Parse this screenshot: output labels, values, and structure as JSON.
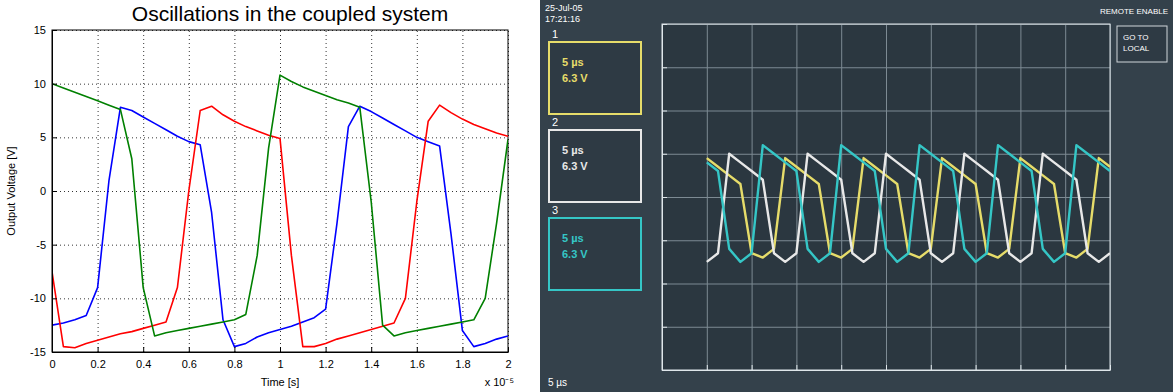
{
  "chart_data": [
    {
      "type": "line",
      "title": "Oscillations in the coupled system",
      "x_label": "Time [s]",
      "y_label": "Output Voltage [V]",
      "x_multiplier": "x 10⁻⁵",
      "x": [
        0,
        0.05,
        0.1,
        0.15,
        0.2,
        0.25,
        0.3,
        0.35,
        0.4,
        0.45,
        0.5,
        0.55,
        0.6,
        0.65,
        0.7,
        0.75,
        0.8,
        0.85,
        0.9,
        0.95,
        1,
        1.05,
        1.1,
        1.15,
        1.2,
        1.25,
        1.3,
        1.35,
        1.4,
        1.45,
        1.5,
        1.55,
        1.6,
        1.65,
        1.7,
        1.75,
        1.8,
        1.85,
        1.9,
        1.95,
        2
      ],
      "series": [
        {
          "color": "#0000ff",
          "values": [
            -12.5,
            -12.3,
            -12.0,
            -11.6,
            -9,
            1,
            7.8,
            7.5,
            6.9,
            6.3,
            5.7,
            5.1,
            4.6,
            4.3,
            -2,
            -12,
            -14.5,
            -14.2,
            -13.6,
            -13.2,
            -12.9,
            -12.6,
            -12.2,
            -11.8,
            -11,
            -3,
            6,
            7.9,
            7.4,
            6.8,
            6.2,
            5.6,
            5.0,
            4.6,
            4.2,
            -4,
            -13,
            -14.5,
            -14.2,
            -13.8,
            -13.5
          ]
        },
        {
          "color": "#ff0000",
          "values": [
            -7.5,
            -14.5,
            -14.6,
            -14.2,
            -13.9,
            -13.6,
            -13.3,
            -13.1,
            -12.8,
            -12.5,
            -12.2,
            -9,
            0,
            7.5,
            7.9,
            7.1,
            6.5,
            6.0,
            5.6,
            5.2,
            4.9,
            -6,
            -14.5,
            -14.5,
            -14.2,
            -13.8,
            -13.5,
            -13.2,
            -12.9,
            -12.6,
            -12.3,
            -10,
            -1,
            6.5,
            8.0,
            7.3,
            6.7,
            6.2,
            5.8,
            5.4,
            5.1
          ]
        },
        {
          "color": "#008000",
          "values": [
            10,
            9.6,
            9.2,
            8.8,
            8.4,
            8.0,
            7.6,
            3,
            -9,
            -13.5,
            -13.2,
            -13.0,
            -12.8,
            -12.6,
            -12.4,
            -12.2,
            -12.0,
            -11.5,
            -6,
            4,
            10.8,
            10.2,
            9.7,
            9.3,
            8.9,
            8.5,
            8.2,
            7.8,
            -1,
            -12.5,
            -13.5,
            -13.2,
            -13.0,
            -12.8,
            -12.6,
            -12.4,
            -12.2,
            -12.0,
            -10,
            -3,
            4.8
          ]
        }
      ],
      "xlim": [
        0,
        2
      ],
      "ylim": [
        -15,
        15
      ],
      "xticks": [
        0,
        0.2,
        0.4,
        0.6,
        0.8,
        1,
        1.2,
        1.4,
        1.6,
        1.8,
        2
      ],
      "yticks": [
        -15,
        -10,
        -5,
        0,
        5,
        10,
        15
      ],
      "grid": true
    },
    {
      "type": "line",
      "x": [
        1,
        1.25,
        1.5,
        1.75,
        2,
        2.25,
        2.5,
        2.75,
        3,
        3.25,
        3.5,
        3.75,
        4,
        4.25,
        4.5,
        4.75,
        5,
        5.25,
        5.5,
        5.75,
        6,
        6.25,
        6.5,
        6.75,
        7,
        7.25,
        7.5,
        7.75,
        8,
        8.25,
        8.5,
        8.75,
        9,
        9.25,
        9.5,
        9.75,
        10
      ],
      "series": [
        {
          "name": "1",
          "color": "#e6dc6a",
          "scale_labels": [
            "5 µs",
            "6.3 V"
          ],
          "values": [
            0.9,
            0.7,
            0.5,
            0.3,
            -1.3,
            -1.4,
            -1.2,
            0.9,
            0.7,
            0.5,
            0.3,
            -1.3,
            -1.4,
            -1.2,
            0.9,
            0.7,
            0.5,
            0.3,
            -1.3,
            -1.4,
            -1.2,
            0.9,
            0.7,
            0.5,
            0.3,
            -1.3,
            -1.4,
            -1.2,
            0.9,
            0.7,
            0.5,
            0.3,
            -1.3,
            -1.4,
            -1.2,
            0.9,
            0.7
          ]
        },
        {
          "name": "2",
          "color": "#e8e8e8",
          "scale_labels": [
            "5 µs",
            "6.3 V"
          ],
          "values": [
            -1.5,
            -1.3,
            1.0,
            0.8,
            0.6,
            0.4,
            -1.3,
            -1.5,
            -1.3,
            1.0,
            0.8,
            0.6,
            0.4,
            -1.3,
            -1.5,
            -1.3,
            1.0,
            0.8,
            0.6,
            0.4,
            -1.3,
            -1.5,
            -1.3,
            1.0,
            0.8,
            0.6,
            0.4,
            -1.3,
            -1.5,
            -1.3,
            1.0,
            0.8,
            0.6,
            0.4,
            -1.3,
            -1.5,
            -1.3
          ]
        },
        {
          "name": "3",
          "color": "#35c6c6",
          "scale_labels": [
            "5 µs",
            "6.3 V"
          ],
          "values": [
            0.8,
            0.6,
            -1.2,
            -1.5,
            -1.3,
            1.2,
            1.0,
            0.8,
            0.6,
            -1.2,
            -1.5,
            -1.3,
            1.2,
            1.0,
            0.8,
            0.6,
            -1.2,
            -1.5,
            -1.3,
            1.2,
            1.0,
            0.8,
            0.6,
            -1.2,
            -1.5,
            -1.3,
            1.2,
            1.0,
            0.8,
            0.6,
            -1.2,
            -1.5,
            -1.3,
            1.2,
            1.0,
            0.8,
            0.6
          ]
        }
      ],
      "xlim": [
        0,
        10
      ],
      "ylim": [
        -4,
        4
      ],
      "xticks": [
        0,
        1,
        2,
        3,
        4,
        5,
        6,
        7,
        8,
        9,
        10
      ],
      "yticks": [
        -4,
        -3,
        -2,
        -1,
        0,
        1,
        2,
        3,
        4
      ],
      "grid": true,
      "tick_labels": false,
      "annotations": {
        "date": "25-Jul-05",
        "time": "17:21:16",
        "status": "REMOTE ENABLE",
        "button": [
          "GO TO",
          "LOCAL"
        ],
        "timebase": "5 µs"
      }
    }
  ]
}
